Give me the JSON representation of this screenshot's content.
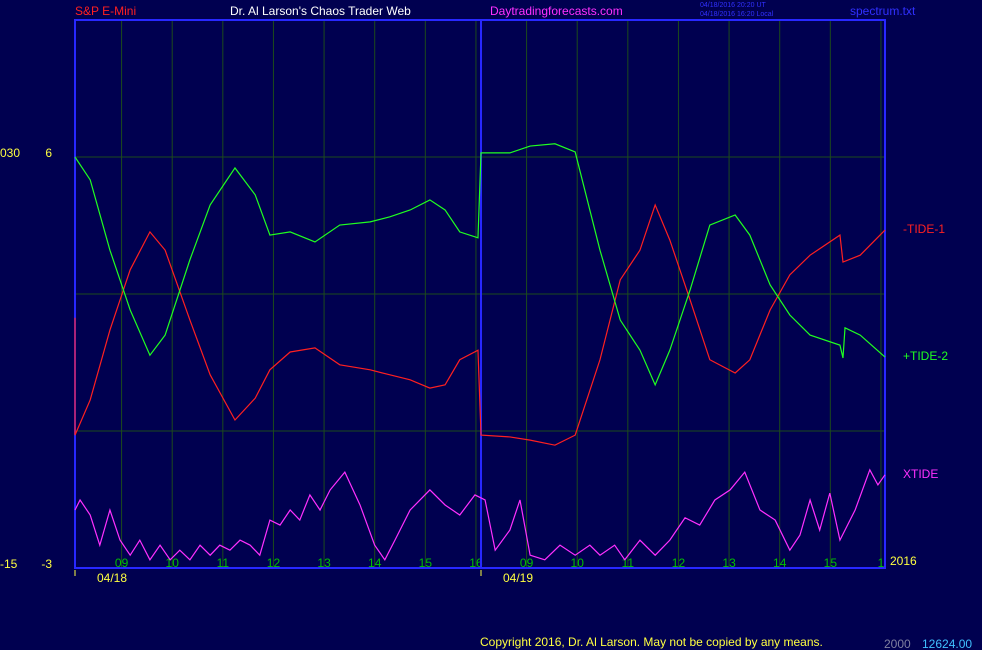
{
  "chart_data": {
    "type": "line",
    "title": "Dr. Al Larson's Chaos Trader Web",
    "instrument": "S&P E-Mini",
    "website": "Daytradingforecasts.com",
    "timestamps": [
      "04/18/2016 20:20 UT",
      "04/18/2016 16:20 Local"
    ],
    "file_name": "spectrum.txt",
    "copyright": "Copyright 2016, Dr. Al Larson. May not be copied by any means.",
    "footer_values": [
      "2000",
      "12624.00"
    ],
    "year_label": "2016",
    "left_scale_labels": {
      "top": "030",
      "bottom": "-15"
    },
    "xlim": [
      0.08,
      16.08
    ],
    "ylim": [
      -3,
      9
    ],
    "yticks": [
      -3,
      6
    ],
    "ygrid": [
      0,
      3,
      6
    ],
    "xticks": [
      {
        "value": 1,
        "label": "09"
      },
      {
        "value": 2,
        "label": "10"
      },
      {
        "value": 3,
        "label": "11"
      },
      {
        "value": 4,
        "label": "12"
      },
      {
        "value": 5,
        "label": "13"
      },
      {
        "value": 6,
        "label": "14"
      },
      {
        "value": 7,
        "label": "15"
      },
      {
        "value": 8,
        "label": "16"
      },
      {
        "value": 9,
        "label": "09"
      },
      {
        "value": 10,
        "label": "10"
      },
      {
        "value": 11,
        "label": "11"
      },
      {
        "value": 12,
        "label": "12"
      },
      {
        "value": 13,
        "label": "13"
      },
      {
        "value": 14,
        "label": "14"
      },
      {
        "value": 15,
        "label": "15"
      },
      {
        "value": 16,
        "label": "1"
      }
    ],
    "days": [
      {
        "x": 0.08,
        "label": "04/18"
      },
      {
        "x": 8.1,
        "label": "04/19"
      }
    ],
    "grid": true,
    "series": [
      {
        "name": "-TIDE-1",
        "color": "#ff2020",
        "x": [
          0.08,
          0.08,
          0.38,
          0.77,
          1.17,
          1.56,
          1.86,
          2.35,
          2.75,
          3.24,
          3.64,
          3.93,
          4.33,
          4.82,
          5.31,
          5.91,
          6.3,
          6.7,
          7.09,
          7.39,
          7.68,
          8.04,
          8.1,
          8.67,
          9.07,
          9.56,
          9.96,
          10.45,
          10.85,
          11.24,
          11.54,
          11.83,
          12.23,
          12.62,
          13.12,
          13.41,
          13.81,
          14.2,
          14.6,
          15.19,
          15.25,
          15.59,
          16.08
        ],
        "values": [
          2.48,
          -0.09,
          0.68,
          2.21,
          3.53,
          4.36,
          3.96,
          2.43,
          1.23,
          0.24,
          0.72,
          1.34,
          1.73,
          1.82,
          1.45,
          1.34,
          1.23,
          1.12,
          0.94,
          1.01,
          1.56,
          1.77,
          -0.09,
          -0.13,
          -0.2,
          -0.31,
          -0.09,
          1.56,
          3.31,
          3.96,
          4.95,
          4.18,
          2.87,
          1.56,
          1.27,
          1.56,
          2.65,
          3.42,
          3.85,
          4.29,
          3.7,
          3.85,
          4.4
        ]
      },
      {
        "name": "+TIDE-2",
        "color": "#20ff20",
        "x": [
          0.08,
          0.38,
          0.77,
          1.17,
          1.56,
          1.86,
          2.35,
          2.75,
          3.24,
          3.64,
          3.93,
          4.33,
          4.82,
          5.31,
          5.91,
          6.3,
          6.7,
          7.09,
          7.39,
          7.68,
          8.04,
          8.1,
          8.67,
          9.07,
          9.56,
          9.96,
          10.45,
          10.85,
          11.24,
          11.54,
          11.83,
          12.23,
          12.62,
          13.12,
          13.41,
          13.81,
          14.2,
          14.6,
          15.19,
          15.25,
          15.29,
          15.59,
          16.08
        ],
        "values": [
          6.0,
          5.5,
          3.96,
          2.65,
          1.66,
          2.1,
          3.75,
          4.95,
          5.76,
          5.17,
          4.29,
          4.36,
          4.14,
          4.51,
          4.58,
          4.69,
          4.84,
          5.06,
          4.84,
          4.36,
          4.23,
          6.09,
          6.09,
          6.24,
          6.29,
          6.11,
          3.96,
          2.43,
          1.77,
          1.01,
          1.77,
          3.09,
          4.51,
          4.73,
          4.29,
          3.2,
          2.54,
          2.1,
          1.88,
          1.6,
          2.26,
          2.1,
          1.62
        ]
      },
      {
        "name": "XTIDE",
        "color": "#ff30ff",
        "x": [
          0.08,
          0.18,
          0.38,
          0.57,
          0.77,
          0.97,
          1.17,
          1.36,
          1.56,
          1.76,
          1.96,
          2.15,
          2.35,
          2.55,
          2.75,
          2.94,
          3.14,
          3.34,
          3.54,
          3.73,
          3.93,
          4.13,
          4.33,
          4.52,
          4.72,
          4.92,
          5.12,
          5.41,
          5.71,
          6.0,
          6.2,
          6.4,
          6.7,
          7.09,
          7.39,
          7.68,
          7.98,
          8.18,
          8.38,
          8.67,
          8.87,
          9.07,
          9.36,
          9.66,
          9.96,
          10.25,
          10.45,
          10.74,
          10.94,
          11.24,
          11.54,
          11.83,
          12.13,
          12.42,
          12.72,
          13.02,
          13.31,
          13.61,
          13.91,
          14.2,
          14.4,
          14.6,
          14.79,
          14.99,
          15.19,
          15.49,
          15.78,
          15.94,
          16.08
        ],
        "values": [
          -1.73,
          -1.51,
          -1.84,
          -2.5,
          -1.73,
          -2.39,
          -2.72,
          -2.39,
          -2.82,
          -2.5,
          -2.82,
          -2.61,
          -2.82,
          -2.5,
          -2.72,
          -2.5,
          -2.61,
          -2.39,
          -2.5,
          -2.72,
          -1.95,
          -2.06,
          -1.73,
          -1.95,
          -1.4,
          -1.73,
          -1.29,
          -0.9,
          -1.62,
          -2.5,
          -2.82,
          -2.39,
          -1.73,
          -1.29,
          -1.62,
          -1.84,
          -1.4,
          -1.51,
          -2.61,
          -2.17,
          -1.51,
          -2.72,
          -2.82,
          -2.5,
          -2.72,
          -2.5,
          -2.72,
          -2.5,
          -2.82,
          -2.39,
          -2.72,
          -2.39,
          -1.9,
          -2.06,
          -1.51,
          -1.29,
          -0.9,
          -1.73,
          -1.95,
          -2.61,
          -2.28,
          -1.51,
          -2.17,
          -1.36,
          -2.39,
          -1.73,
          -0.85,
          -1.18,
          -0.96
        ]
      }
    ]
  }
}
